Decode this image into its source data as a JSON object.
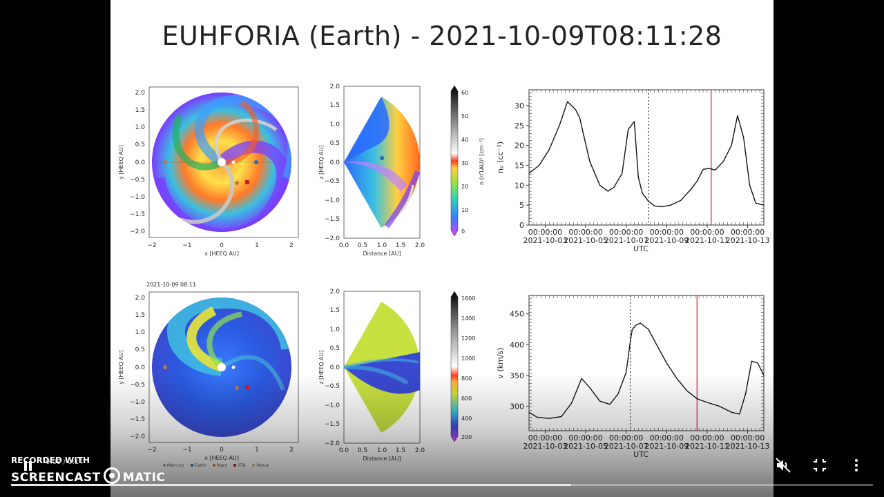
{
  "slide": {
    "title": "EUHFORIA (Earth) -  2021-10-09T08:11:28",
    "timestamp_label": "2021-10-09 08:11"
  },
  "equatorial_maps": {
    "x_label": "x [HEEQ AU]",
    "y_label": "y [HEEQ AU]",
    "x_ticks": [
      "−2",
      "−1",
      "0",
      "1",
      "2"
    ],
    "y_ticks": [
      "2.0",
      "1.5",
      "1.0",
      "0.5",
      "0.0",
      "−0.5",
      "−1.0",
      "−1.5",
      "−2.0"
    ]
  },
  "meridional_maps": {
    "x_label": "Distance [AU]",
    "y_label": "z [HEEQ AU]",
    "x_ticks": [
      "0.0",
      "0.5",
      "1.0",
      "1.5",
      "2.0"
    ],
    "y_ticks": [
      "2.0",
      "1.5",
      "1.0",
      "0.5",
      "0.0",
      "−0.5",
      "−1.0",
      "−1.5",
      "−2.0"
    ]
  },
  "colorbars": {
    "density": {
      "label": "n (r/1AU)² [cm⁻³]",
      "ticks": [
        "60",
        "50",
        "40",
        "30",
        "20",
        "10",
        "0"
      ]
    },
    "speed": {
      "ticks": [
        "1600",
        "1400",
        "1200",
        "1000",
        "800",
        "600",
        "400",
        "200"
      ]
    }
  },
  "legend": {
    "items": [
      {
        "label": "Mercury",
        "color": "#a0a0a0"
      },
      {
        "label": "Venus",
        "color": "#e0c060"
      },
      {
        "label": "Earth",
        "color": "#2a6ab0"
      },
      {
        "label": "Mars",
        "color": "#c07840"
      },
      {
        "label": "STA",
        "color": "#cc2020"
      }
    ]
  },
  "chart_data": [
    {
      "type": "line",
      "ylabel": "nₚ (cc⁻¹)",
      "xlabel": "UTC",
      "ylim": [
        0,
        34
      ],
      "y_ticks": [
        "30",
        "25",
        "20",
        "15",
        "10",
        "5",
        "0"
      ],
      "x_ticks": [
        {
          "time": "00:00:00",
          "date": "2021-10-03"
        },
        {
          "time": "00:00:00",
          "date": "2021-10-05"
        },
        {
          "time": "00:00:00",
          "date": "2021-10-07"
        },
        {
          "time": "00:00:00",
          "date": "2021-10-09"
        },
        {
          "time": "00:00:00",
          "date": "2021-10-11"
        },
        {
          "time": "00:00:00",
          "date": "2021-10-13"
        }
      ],
      "x_range_days": [
        0.0,
        11.6
      ],
      "x": [
        0.0,
        0.5,
        1.0,
        1.5,
        1.9,
        2.3,
        2.5,
        3.0,
        3.5,
        3.9,
        4.2,
        4.6,
        4.9,
        5.2,
        5.4,
        5.6,
        5.9,
        6.2,
        6.6,
        7.0,
        7.5,
        8.0,
        8.3,
        8.6,
        8.9,
        9.2,
        9.6,
        10.0,
        10.3,
        10.6,
        10.9,
        11.2,
        11.6
      ],
      "series": [
        {
          "values": [
            13,
            15,
            19,
            25,
            31,
            29,
            27,
            16,
            10,
            8.5,
            9.5,
            13,
            24,
            26,
            12,
            8,
            6,
            4.8,
            4.6,
            5,
            6.2,
            9,
            11,
            14,
            14.2,
            13.8,
            16,
            20,
            27.5,
            22,
            10,
            5.5,
            5
          ]
        }
      ],
      "markers": {
        "dotted_day": 5.9,
        "current_day": 9.0,
        "current_color": "#cc2020"
      }
    },
    {
      "type": "line",
      "ylabel": "v (km/s)",
      "xlabel": "UTC",
      "ylim": [
        260,
        480
      ],
      "y_ticks": [
        "450",
        "400",
        "350",
        "300"
      ],
      "x_ticks": [
        {
          "time": "00:00:00",
          "date": "2021-10-03"
        },
        {
          "time": "00:00:00",
          "date": "2021-10-05"
        },
        {
          "time": "00:00:00",
          "date": "2021-10-07"
        },
        {
          "time": "00:00:00",
          "date": "2021-10-09"
        },
        {
          "time": "00:00:00",
          "date": "2021-10-11"
        },
        {
          "time": "00:00:00",
          "date": "2021-10-13"
        }
      ],
      "x_range_days": [
        0.0,
        11.6
      ],
      "x": [
        0.0,
        0.4,
        1.0,
        1.6,
        2.1,
        2.6,
        3.0,
        3.5,
        4.0,
        4.4,
        4.8,
        5.0,
        5.1,
        5.3,
        5.5,
        5.9,
        6.3,
        6.8,
        7.3,
        7.8,
        8.3,
        8.8,
        9.4,
        10.0,
        10.4,
        10.7,
        11.0,
        11.3,
        11.6
      ],
      "series": [
        {
          "values": [
            290,
            282,
            280,
            283,
            305,
            345,
            330,
            308,
            303,
            320,
            355,
            405,
            425,
            432,
            435,
            425,
            400,
            370,
            345,
            325,
            312,
            306,
            300,
            290,
            287,
            320,
            373,
            370,
            350
          ]
        }
      ],
      "markers": {
        "dotted_day": 5.0,
        "current_day": 8.3,
        "current_color": "#cc2020"
      }
    }
  ],
  "player": {
    "watermark_top": "RECORDED WITH",
    "watermark_left": "SCREENCAST",
    "watermark_right": "MATIC",
    "timecode": "0:09 / 0:14",
    "progress_fraction": 0.65,
    "mute_icon": "mute-icon",
    "minimize_icon": "exit-fullscreen-icon",
    "menu_icon": "more-vertical-icon"
  }
}
